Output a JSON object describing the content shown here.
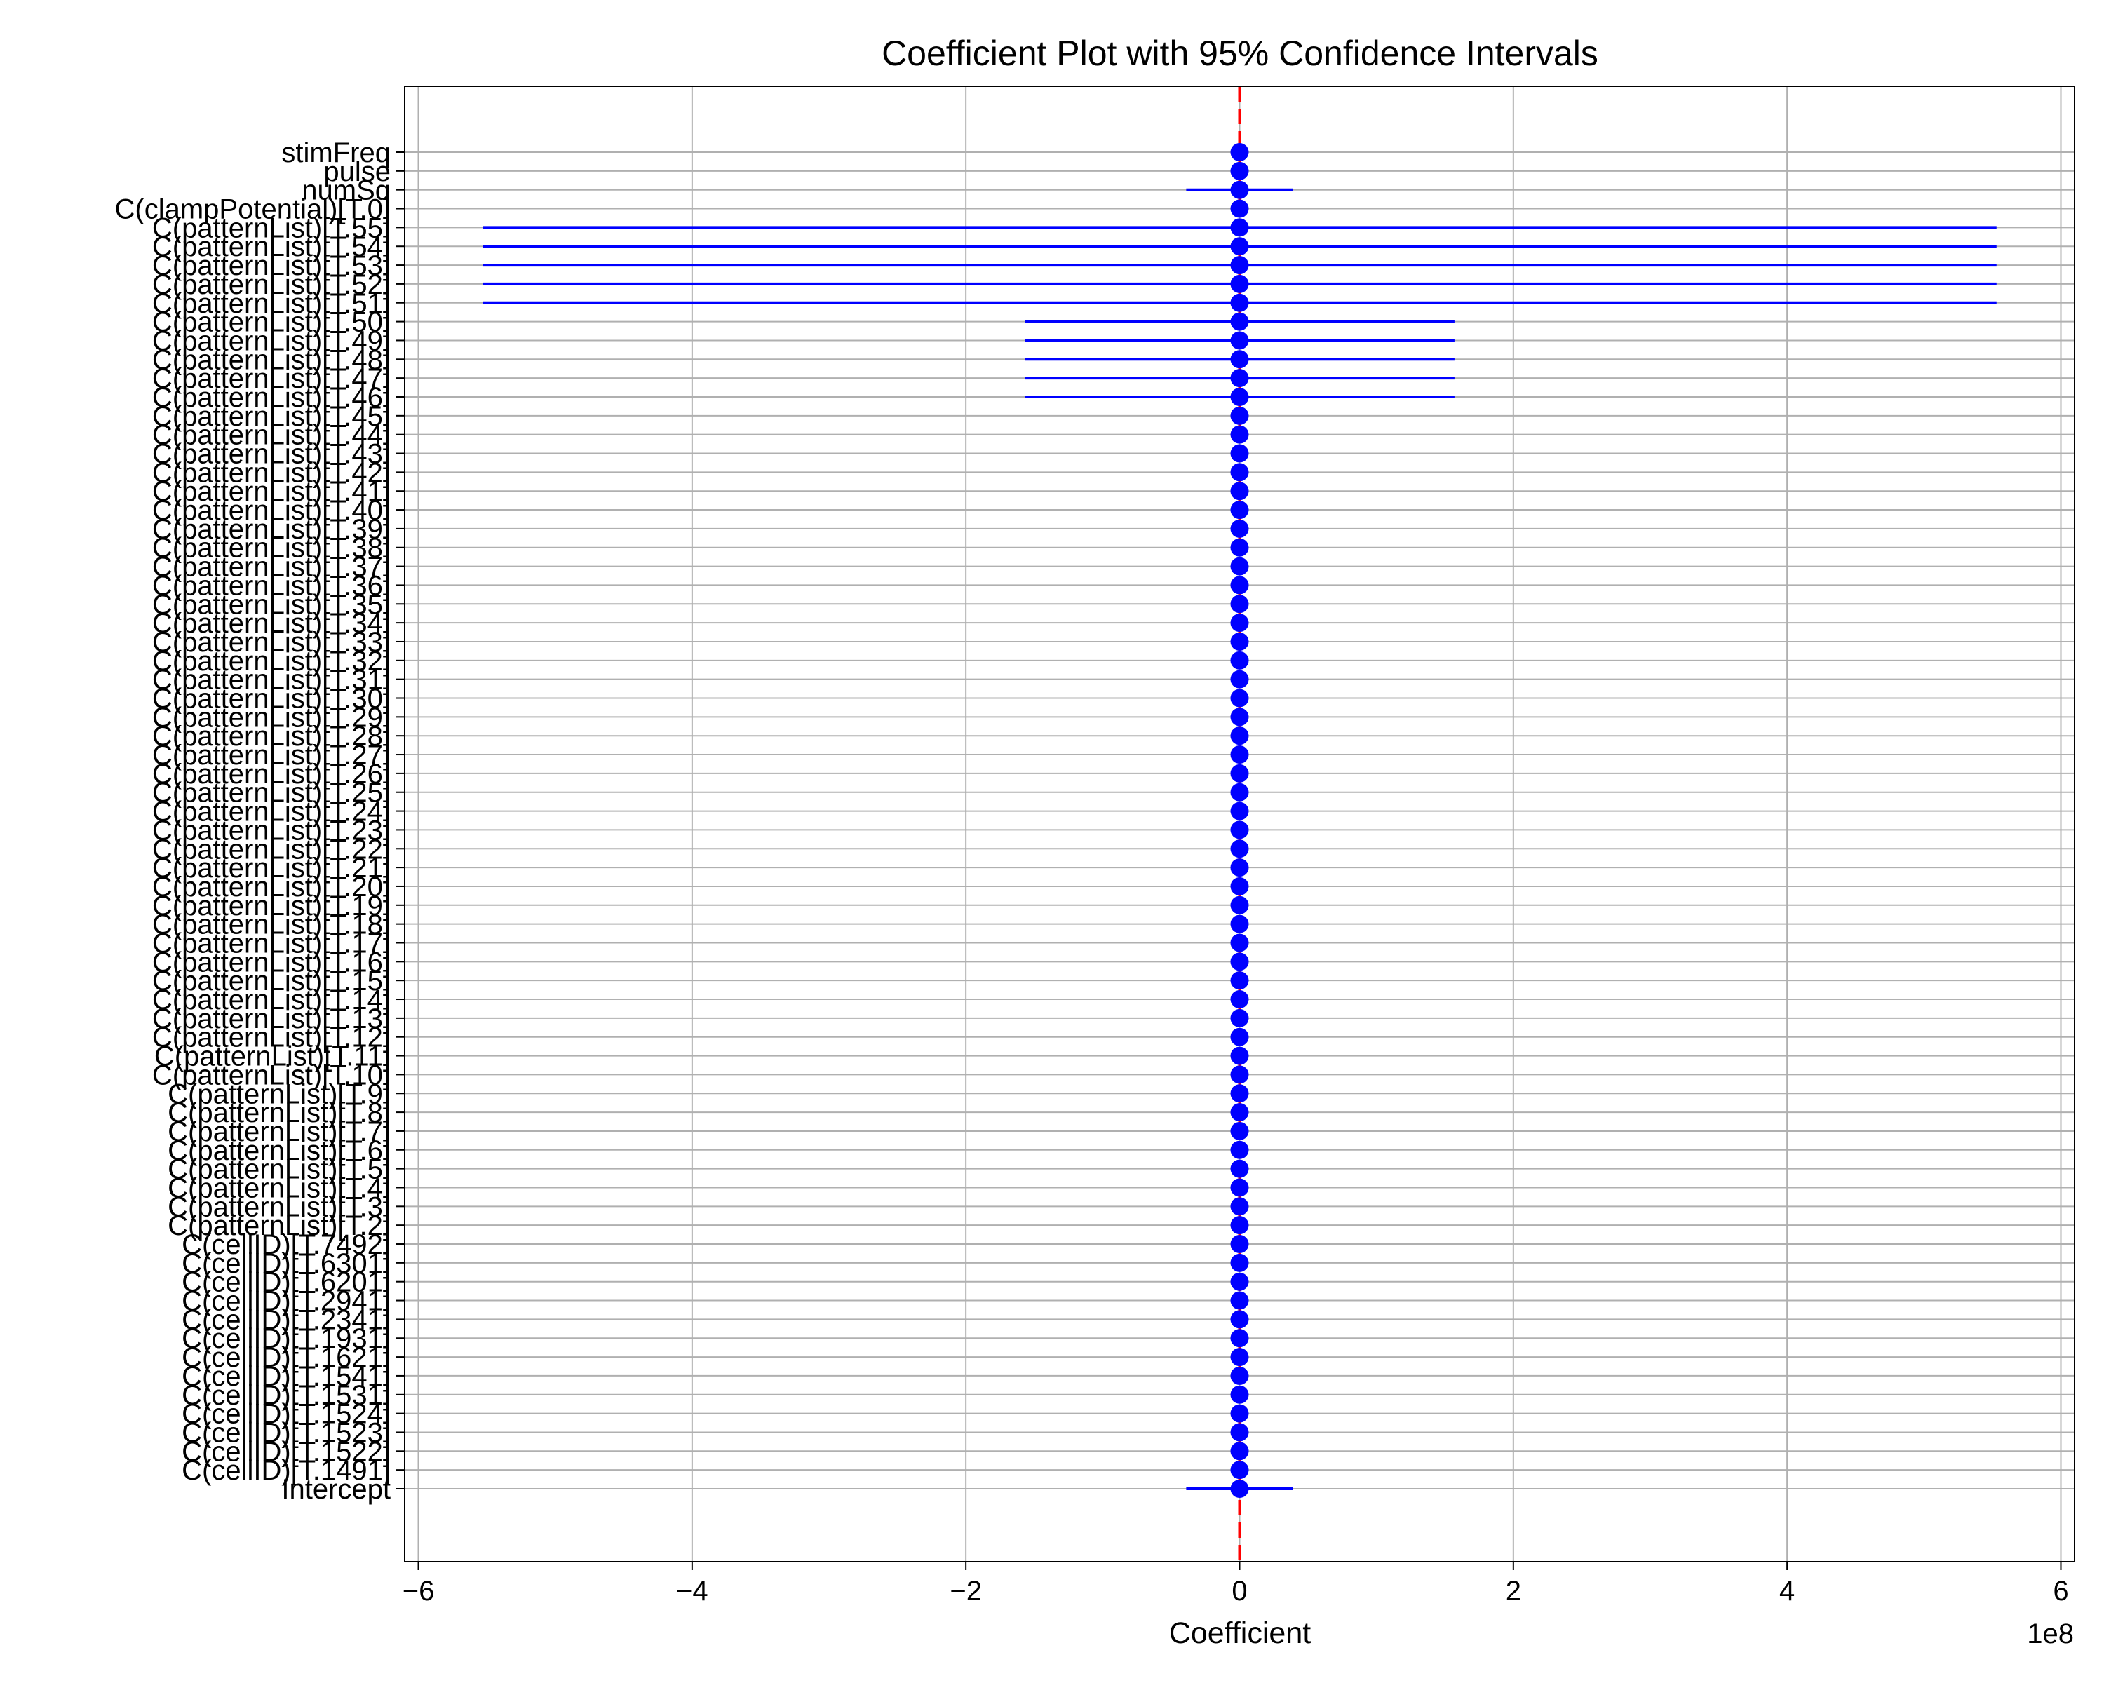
{
  "chart_data": {
    "type": "errorbar-coefficient",
    "title": "Coefficient Plot with 95% Confidence Intervals",
    "xlabel": "Coefficient",
    "ylabel": "",
    "x_offset_label": "1e8",
    "xlim": [
      -6.1,
      6.1
    ],
    "x_ticks": [
      -6,
      -4,
      -2,
      0,
      2,
      4,
      6
    ],
    "x_tick_labels": [
      "−6",
      "−4",
      "−2",
      "0",
      "2",
      "4",
      "6"
    ],
    "grid": true,
    "reference_line": {
      "x": 0,
      "color": "#ff0000",
      "style": "dashed"
    },
    "marker_color": "#0000ff",
    "terms": [
      {
        "label": "stimFreq",
        "coef": 0,
        "lo": 0,
        "hi": 0
      },
      {
        "label": "pulse",
        "coef": 0,
        "lo": 0,
        "hi": 0
      },
      {
        "label": "numSq",
        "coef": 0,
        "lo": -0.39,
        "hi": 0.39
      },
      {
        "label": "C(clampPotential)[T.0]",
        "coef": 0,
        "lo": 0,
        "hi": 0
      },
      {
        "label": "C(patternList)[T.55]",
        "coef": 0,
        "lo": -5.53,
        "hi": 5.53
      },
      {
        "label": "C(patternList)[T.54]",
        "coef": 0,
        "lo": -5.53,
        "hi": 5.53
      },
      {
        "label": "C(patternList)[T.53]",
        "coef": 0,
        "lo": -5.53,
        "hi": 5.53
      },
      {
        "label": "C(patternList)[T.52]",
        "coef": 0,
        "lo": -5.53,
        "hi": 5.53
      },
      {
        "label": "C(patternList)[T.51]",
        "coef": 0,
        "lo": -5.53,
        "hi": 5.53
      },
      {
        "label": "C(patternList)[T.50]",
        "coef": 0,
        "lo": -1.57,
        "hi": 1.57
      },
      {
        "label": "C(patternList)[T.49]",
        "coef": 0,
        "lo": -1.57,
        "hi": 1.57
      },
      {
        "label": "C(patternList)[T.48]",
        "coef": 0,
        "lo": -1.57,
        "hi": 1.57
      },
      {
        "label": "C(patternList)[T.47]",
        "coef": 0,
        "lo": -1.57,
        "hi": 1.57
      },
      {
        "label": "C(patternList)[T.46]",
        "coef": 0,
        "lo": -1.57,
        "hi": 1.57
      },
      {
        "label": "C(patternList)[T.45]",
        "coef": 0,
        "lo": 0,
        "hi": 0
      },
      {
        "label": "C(patternList)[T.44]",
        "coef": 0,
        "lo": 0,
        "hi": 0
      },
      {
        "label": "C(patternList)[T.43]",
        "coef": 0,
        "lo": 0,
        "hi": 0
      },
      {
        "label": "C(patternList)[T.42]",
        "coef": 0,
        "lo": 0,
        "hi": 0
      },
      {
        "label": "C(patternList)[T.41]",
        "coef": 0,
        "lo": 0,
        "hi": 0
      },
      {
        "label": "C(patternList)[T.40]",
        "coef": 0,
        "lo": 0,
        "hi": 0
      },
      {
        "label": "C(patternList)[T.39]",
        "coef": 0,
        "lo": 0,
        "hi": 0
      },
      {
        "label": "C(patternList)[T.38]",
        "coef": 0,
        "lo": 0,
        "hi": 0
      },
      {
        "label": "C(patternList)[T.37]",
        "coef": 0,
        "lo": 0,
        "hi": 0
      },
      {
        "label": "C(patternList)[T.36]",
        "coef": 0,
        "lo": 0,
        "hi": 0
      },
      {
        "label": "C(patternList)[T.35]",
        "coef": 0,
        "lo": 0,
        "hi": 0
      },
      {
        "label": "C(patternList)[T.34]",
        "coef": 0,
        "lo": 0,
        "hi": 0
      },
      {
        "label": "C(patternList)[T.33]",
        "coef": 0,
        "lo": 0,
        "hi": 0
      },
      {
        "label": "C(patternList)[T.32]",
        "coef": 0,
        "lo": 0,
        "hi": 0
      },
      {
        "label": "C(patternList)[T.31]",
        "coef": 0,
        "lo": 0,
        "hi": 0
      },
      {
        "label": "C(patternList)[T.30]",
        "coef": 0,
        "lo": 0,
        "hi": 0
      },
      {
        "label": "C(patternList)[T.29]",
        "coef": 0,
        "lo": 0,
        "hi": 0
      },
      {
        "label": "C(patternList)[T.28]",
        "coef": 0,
        "lo": 0,
        "hi": 0
      },
      {
        "label": "C(patternList)[T.27]",
        "coef": 0,
        "lo": 0,
        "hi": 0
      },
      {
        "label": "C(patternList)[T.26]",
        "coef": 0,
        "lo": 0,
        "hi": 0
      },
      {
        "label": "C(patternList)[T.25]",
        "coef": 0,
        "lo": 0,
        "hi": 0
      },
      {
        "label": "C(patternList)[T.24]",
        "coef": 0,
        "lo": 0,
        "hi": 0
      },
      {
        "label": "C(patternList)[T.23]",
        "coef": 0,
        "lo": 0,
        "hi": 0
      },
      {
        "label": "C(patternList)[T.22]",
        "coef": 0,
        "lo": 0,
        "hi": 0
      },
      {
        "label": "C(patternList)[T.21]",
        "coef": 0,
        "lo": 0,
        "hi": 0
      },
      {
        "label": "C(patternList)[T.20]",
        "coef": 0,
        "lo": 0,
        "hi": 0
      },
      {
        "label": "C(patternList)[T.19]",
        "coef": 0,
        "lo": 0,
        "hi": 0
      },
      {
        "label": "C(patternList)[T.18]",
        "coef": 0,
        "lo": 0,
        "hi": 0
      },
      {
        "label": "C(patternList)[T.17]",
        "coef": 0,
        "lo": 0,
        "hi": 0
      },
      {
        "label": "C(patternList)[T.16]",
        "coef": 0,
        "lo": 0,
        "hi": 0
      },
      {
        "label": "C(patternList)[T.15]",
        "coef": 0,
        "lo": 0,
        "hi": 0
      },
      {
        "label": "C(patternList)[T.14]",
        "coef": 0,
        "lo": 0,
        "hi": 0
      },
      {
        "label": "C(patternList)[T.13]",
        "coef": 0,
        "lo": 0,
        "hi": 0
      },
      {
        "label": "C(patternList)[T.12]",
        "coef": 0,
        "lo": 0,
        "hi": 0
      },
      {
        "label": "C(patternList)[T.11]",
        "coef": 0,
        "lo": 0,
        "hi": 0
      },
      {
        "label": "C(patternList)[T.10]",
        "coef": 0,
        "lo": 0,
        "hi": 0
      },
      {
        "label": "C(patternList)[T.9]",
        "coef": 0,
        "lo": 0,
        "hi": 0
      },
      {
        "label": "C(patternList)[T.8]",
        "coef": 0,
        "lo": 0,
        "hi": 0
      },
      {
        "label": "C(patternList)[T.7]",
        "coef": 0,
        "lo": 0,
        "hi": 0
      },
      {
        "label": "C(patternList)[T.6]",
        "coef": 0,
        "lo": 0,
        "hi": 0
      },
      {
        "label": "C(patternList)[T.5]",
        "coef": 0,
        "lo": 0,
        "hi": 0
      },
      {
        "label": "C(patternList)[T.4]",
        "coef": 0,
        "lo": 0,
        "hi": 0
      },
      {
        "label": "C(patternList)[T.3]",
        "coef": 0,
        "lo": 0,
        "hi": 0
      },
      {
        "label": "C(patternList)[T.2]",
        "coef": 0,
        "lo": 0,
        "hi": 0
      },
      {
        "label": "C(cellID)[T.7492]",
        "coef": 0,
        "lo": 0,
        "hi": 0
      },
      {
        "label": "C(cellID)[T.6301]",
        "coef": 0,
        "lo": 0,
        "hi": 0
      },
      {
        "label": "C(cellID)[T.6201]",
        "coef": 0,
        "lo": 0,
        "hi": 0
      },
      {
        "label": "C(cellID)[T.2941]",
        "coef": 0,
        "lo": 0,
        "hi": 0
      },
      {
        "label": "C(cellID)[T.2341]",
        "coef": 0,
        "lo": 0,
        "hi": 0
      },
      {
        "label": "C(cellID)[T.1931]",
        "coef": 0,
        "lo": 0,
        "hi": 0
      },
      {
        "label": "C(cellID)[T.1621]",
        "coef": 0,
        "lo": 0,
        "hi": 0
      },
      {
        "label": "C(cellID)[T.1541]",
        "coef": 0,
        "lo": 0,
        "hi": 0
      },
      {
        "label": "C(cellID)[T.1531]",
        "coef": 0,
        "lo": 0,
        "hi": 0
      },
      {
        "label": "C(cellID)[T.1524]",
        "coef": 0,
        "lo": 0,
        "hi": 0
      },
      {
        "label": "C(cellID)[T.1523]",
        "coef": 0,
        "lo": 0,
        "hi": 0
      },
      {
        "label": "C(cellID)[T.1522]",
        "coef": 0,
        "lo": 0,
        "hi": 0
      },
      {
        "label": "C(cellID)[T.1491]",
        "coef": 0,
        "lo": 0,
        "hi": 0
      },
      {
        "label": "Intercept",
        "coef": 0,
        "lo": -0.39,
        "hi": 0.39
      }
    ]
  }
}
